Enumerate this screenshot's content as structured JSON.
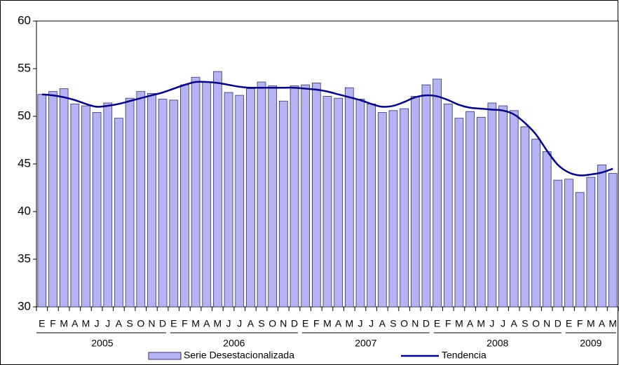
{
  "chart_data": {
    "type": "bar-line",
    "categories": [
      "E",
      "F",
      "M",
      "A",
      "M",
      "J",
      "J",
      "A",
      "S",
      "O",
      "N",
      "D",
      "E",
      "F",
      "M",
      "A",
      "M",
      "J",
      "J",
      "A",
      "S",
      "O",
      "N",
      "D",
      "E",
      "F",
      "M",
      "A",
      "M",
      "J",
      "J",
      "A",
      "S",
      "O",
      "N",
      "D",
      "E",
      "F",
      "M",
      "A",
      "M",
      "J",
      "J",
      "A",
      "S",
      "O",
      "N",
      "D",
      "E",
      "F",
      "M",
      "A",
      "M"
    ],
    "years": [
      "2005",
      "2006",
      "2007",
      "2008",
      "2009"
    ],
    "series": [
      {
        "name": "Serie Desestacionalizada",
        "type": "bar",
        "color": "#b4b4f4",
        "values": [
          52.3,
          52.6,
          52.9,
          51.3,
          51.1,
          50.4,
          51.4,
          49.8,
          51.9,
          52.6,
          52.4,
          51.8,
          51.7,
          53.3,
          54.1,
          53.6,
          54.7,
          52.5,
          52.2,
          52.9,
          53.6,
          53.2,
          51.6,
          53.2,
          53.3,
          53.5,
          52.1,
          51.9,
          53.0,
          51.8,
          51.3,
          50.4,
          50.6,
          50.8,
          52.1,
          53.3,
          53.9,
          51.3,
          49.8,
          50.5,
          49.9,
          51.4,
          51.1,
          50.6,
          48.9,
          47.6,
          46.3,
          43.3,
          43.4,
          42.0,
          43.6,
          44.9,
          44.0
        ]
      },
      {
        "name": "Tendencia",
        "type": "line",
        "color": "#000080",
        "values": [
          52.3,
          52.2,
          52.0,
          51.7,
          51.3,
          51.0,
          51.1,
          51.3,
          51.6,
          51.9,
          52.2,
          52.5,
          52.9,
          53.3,
          53.6,
          53.6,
          53.5,
          53.3,
          53.1,
          53.0,
          53.0,
          53.0,
          53.0,
          53.0,
          52.9,
          52.8,
          52.6,
          52.3,
          52.0,
          51.7,
          51.3,
          51.0,
          51.1,
          51.5,
          52.0,
          52.2,
          52.1,
          51.7,
          51.2,
          50.9,
          50.8,
          50.7,
          50.6,
          50.2,
          49.3,
          48.1,
          46.4,
          44.9,
          44.1,
          43.8,
          43.9,
          44.1,
          44.5
        ]
      }
    ],
    "ylim": [
      30,
      60
    ],
    "yticks": [
      30,
      35,
      40,
      45,
      50,
      55,
      60
    ],
    "grid": false,
    "legend": "bottom"
  }
}
